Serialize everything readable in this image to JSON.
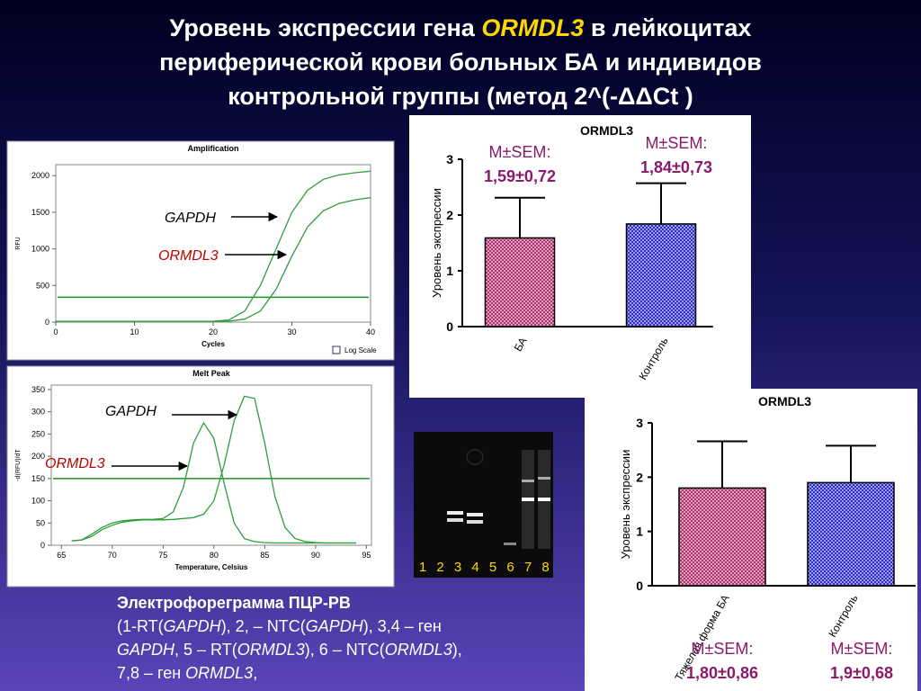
{
  "title": {
    "lines": [
      [
        {
          "text": "Уровень экспрессии гена "
        },
        {
          "text": "ORMDL3",
          "italic": true,
          "color": "#ffd700"
        },
        {
          "text": " в лейкоцитах"
        }
      ],
      [
        {
          "text": "периферической крови больных БА и индивидов"
        }
      ],
      [
        {
          "text": "контрольной группы (метод 2^(-ΔΔCt )"
        }
      ]
    ]
  },
  "chart_data": [
    {
      "type": "line",
      "title": "Amplification",
      "x_label": "Cycles",
      "y_label": "RFU",
      "x": [
        0,
        2,
        4,
        6,
        8,
        10,
        12,
        14,
        16,
        18,
        20,
        22,
        24,
        26,
        28,
        30,
        32,
        34,
        36,
        38,
        40
      ],
      "xlim": [
        0,
        40
      ],
      "xticks": [
        0,
        10,
        20,
        30,
        40
      ],
      "ylim": [
        0,
        2150
      ],
      "yticks": [
        0,
        500,
        1000,
        1500,
        2000
      ],
      "threshold": 340,
      "checkbox_label": "Log Scale",
      "series": [
        {
          "name": "GAPDH",
          "color": "#2e9e3a",
          "values": [
            10,
            10,
            10,
            10,
            10,
            10,
            10,
            10,
            10,
            10,
            12,
            30,
            150,
            500,
            1000,
            1500,
            1800,
            1950,
            2010,
            2040,
            2060
          ]
        },
        {
          "name": "ORMDL3",
          "color": "#2e9e3a",
          "values": [
            10,
            10,
            10,
            10,
            10,
            10,
            10,
            10,
            10,
            10,
            10,
            12,
            40,
            150,
            450,
            900,
            1300,
            1520,
            1620,
            1670,
            1700
          ]
        }
      ]
    },
    {
      "type": "line",
      "title": "Melt Peak",
      "x_label": "Temperature, Celsius",
      "y_label": "-d(RFU)/dT",
      "x": [
        66,
        67,
        68,
        69,
        70,
        71,
        72,
        73,
        74,
        75,
        76,
        77,
        78,
        79,
        80,
        81,
        82,
        83,
        84,
        85,
        86,
        87,
        88,
        89,
        90,
        91,
        92,
        93,
        94
      ],
      "xlim": [
        64,
        95.5
      ],
      "xticks": [
        65,
        70,
        75,
        80,
        85,
        90,
        95
      ],
      "ylim": [
        0,
        360
      ],
      "yticks": [
        0,
        50,
        100,
        150,
        200,
        250,
        300,
        350
      ],
      "threshold": 150,
      "series": [
        {
          "name": "GAPDH",
          "color": "#2e9e3a",
          "values": [
            10,
            12,
            20,
            35,
            45,
            52,
            55,
            57,
            57,
            57,
            58,
            60,
            62,
            70,
            100,
            180,
            280,
            335,
            330,
            230,
            110,
            40,
            15,
            8,
            6,
            5,
            5,
            5,
            5
          ]
        },
        {
          "name": "ORMDL3",
          "color": "#2e9e3a",
          "values": [
            10,
            12,
            25,
            40,
            50,
            55,
            57,
            58,
            58,
            60,
            75,
            130,
            230,
            275,
            240,
            140,
            50,
            15,
            8,
            6,
            5,
            5,
            5,
            5,
            5,
            5,
            5,
            5,
            5
          ]
        }
      ]
    },
    {
      "type": "bar",
      "title": "ORMDL3",
      "y_label": "Уровень экспрессии",
      "categories": [
        "БА",
        "Контроль"
      ],
      "values": [
        1.59,
        1.84
      ],
      "errors": [
        0.72,
        0.73
      ],
      "value_labels": [
        "1,59±0,72",
        "1,84±0,73"
      ],
      "stat_label": "M±SEM:",
      "colors": [
        "#b0306e",
        "#2c2cc8"
      ],
      "ylim": [
        0,
        3
      ],
      "yticks": [
        0,
        1,
        2,
        3
      ]
    },
    {
      "type": "bar",
      "title": "ORMDL3",
      "y_label": "Уровень экспрессии",
      "categories": [
        "Тяжелая форма БА",
        "Контроль"
      ],
      "values": [
        1.8,
        1.9
      ],
      "errors": [
        0.86,
        0.68
      ],
      "value_labels": [
        "1,80±0,86",
        "1,9±0,68"
      ],
      "stat_label": "M±SEM:",
      "colors": [
        "#b0306e",
        "#2c2cc8"
      ],
      "ylim": [
        0,
        3
      ],
      "yticks": [
        0,
        1,
        2,
        3
      ]
    }
  ],
  "gel": {
    "lanes": [
      "1",
      "2",
      "3",
      "4",
      "5",
      "6",
      "7",
      "8"
    ]
  },
  "caption": {
    "heading": "Электрофореграмма ПЦР-РВ",
    "lines": [
      [
        {
          "text": "(1-RT("
        },
        {
          "text": "GAPDH",
          "italic": true
        },
        {
          "text": "), 2, – NTC("
        },
        {
          "text": "GAPDH",
          "italic": true
        },
        {
          "text": "), 3,4 – ген"
        }
      ],
      [
        {
          "text": "GAPDH",
          "italic": true
        },
        {
          "text": ", 5 – RT("
        },
        {
          "text": "ORMDL3",
          "italic": true
        },
        {
          "text": "), 6 – NTC("
        },
        {
          "text": "ORMDL3",
          "italic": true
        },
        {
          "text": "),"
        }
      ],
      [
        {
          "text": "7,8 – ген "
        },
        {
          "text": "ORMDL3",
          "italic": true
        },
        {
          "text": ","
        }
      ]
    ]
  }
}
